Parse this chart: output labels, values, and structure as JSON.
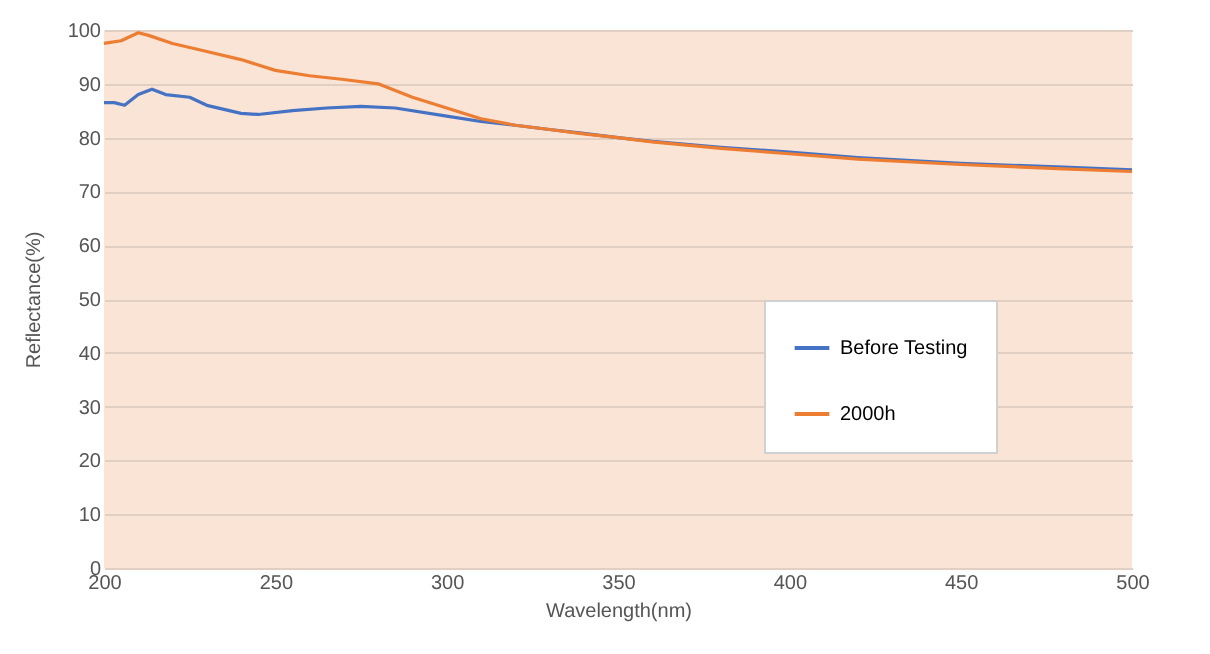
{
  "chart_data": {
    "type": "line",
    "xlabel": "Wavelength(nm)",
    "ylabel": "Reflectance(%)",
    "xlim": [
      200,
      500
    ],
    "xticks": [
      200,
      250,
      300,
      350,
      400,
      450,
      500
    ],
    "ylim": [
      0,
      100
    ],
    "yticks": [
      0,
      10,
      20,
      30,
      40,
      50,
      60,
      70,
      80,
      90,
      100
    ],
    "grid": "y",
    "legend": "right",
    "line_style": "solid",
    "marker": "none",
    "series": [
      {
        "name": "Before Testing",
        "color": "#4472c4",
        "x": [
          200,
          203,
          206,
          210,
          214,
          218,
          225,
          230,
          240,
          245,
          255,
          265,
          275,
          285,
          300,
          310,
          320,
          330,
          340,
          350,
          360,
          380,
          400,
          420,
          450,
          480,
          500
        ],
        "values": [
          86.5,
          86.5,
          86,
          88,
          89,
          88,
          87.5,
          86,
          84.5,
          84.3,
          85,
          85.5,
          85.8,
          85.5,
          84,
          83,
          82.3,
          81.5,
          80.8,
          80,
          79.3,
          78.2,
          77.3,
          76.3,
          75.2,
          74.5,
          74
        ]
      },
      {
        "name": "2000h",
        "color": "#ed7d31",
        "x": [
          200,
          205,
          210,
          213,
          220,
          230,
          240,
          250,
          260,
          270,
          280,
          290,
          300,
          310,
          320,
          330,
          340,
          350,
          360,
          380,
          400,
          420,
          450,
          480,
          500
        ],
        "values": [
          97.5,
          98,
          99.5,
          99,
          97.5,
          96,
          94.5,
          92.5,
          91.5,
          90.8,
          90,
          87.5,
          85.5,
          83.5,
          82.3,
          81.5,
          80.7,
          80,
          79.2,
          78,
          77,
          76,
          75,
          74.2,
          73.7
        ]
      }
    ]
  }
}
